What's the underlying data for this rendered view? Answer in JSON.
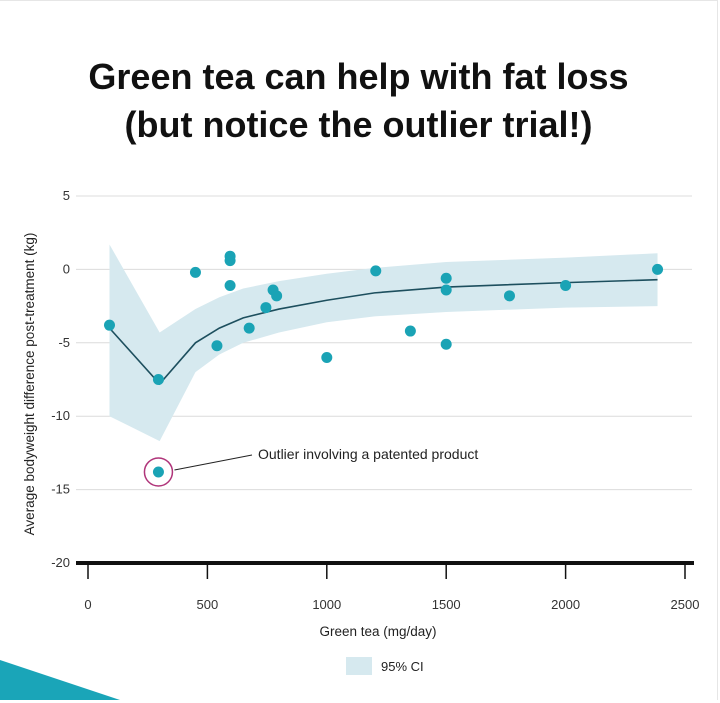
{
  "title_line1": "Green tea can help with fat loss",
  "title_line2": "(but notice the outlier trial!)",
  "chart_data": {
    "type": "scatter",
    "xlabel": "Green tea (mg/day)",
    "ylabel": "Average bodyweight difference post-treatment (kg)",
    "xlim": [
      0,
      2500
    ],
    "ylim": [
      -20,
      5
    ],
    "x_ticks": [
      0,
      500,
      1000,
      1500,
      2000,
      2500
    ],
    "y_ticks": [
      5,
      0,
      -5,
      -10,
      -15,
      -20
    ],
    "grid": true,
    "legend_position": "bottom-center",
    "legend_label": "95% CI",
    "colors": {
      "points": "#1aa3b5",
      "line": "#1d4f5e",
      "ci_band": "#d6e9ef",
      "outlier_ring": "#b0357a"
    },
    "points": [
      {
        "x": 90,
        "y": -3.8
      },
      {
        "x": 295,
        "y": -7.5
      },
      {
        "x": 450,
        "y": -0.2
      },
      {
        "x": 540,
        "y": -5.2
      },
      {
        "x": 595,
        "y": 0.9
      },
      {
        "x": 595,
        "y": 0.6
      },
      {
        "x": 595,
        "y": -1.1
      },
      {
        "x": 675,
        "y": -4.0
      },
      {
        "x": 745,
        "y": -2.6
      },
      {
        "x": 775,
        "y": -1.4
      },
      {
        "x": 790,
        "y": -1.8
      },
      {
        "x": 1000,
        "y": -6.0
      },
      {
        "x": 1205,
        "y": -0.1
      },
      {
        "x": 1350,
        "y": -4.2
      },
      {
        "x": 1500,
        "y": -0.6
      },
      {
        "x": 1500,
        "y": -1.4
      },
      {
        "x": 1500,
        "y": -5.1
      },
      {
        "x": 1765,
        "y": -1.8
      },
      {
        "x": 2000,
        "y": -1.1
      },
      {
        "x": 2385,
        "y": 0.0
      }
    ],
    "outlier": {
      "x": 295,
      "y": -13.8,
      "label": "Outlier involving a patented product"
    },
    "fit_line": [
      {
        "x": 90,
        "y": -4.0
      },
      {
        "x": 300,
        "y": -7.8
      },
      {
        "x": 450,
        "y": -5.0
      },
      {
        "x": 550,
        "y": -4.0
      },
      {
        "x": 650,
        "y": -3.3
      },
      {
        "x": 800,
        "y": -2.7
      },
      {
        "x": 1000,
        "y": -2.1
      },
      {
        "x": 1200,
        "y": -1.6
      },
      {
        "x": 1500,
        "y": -1.2
      },
      {
        "x": 2000,
        "y": -0.9
      },
      {
        "x": 2385,
        "y": -0.7
      }
    ],
    "ci_upper": [
      {
        "x": 90,
        "y": 1.7
      },
      {
        "x": 300,
        "y": -4.3
      },
      {
        "x": 450,
        "y": -2.7
      },
      {
        "x": 550,
        "y": -1.9
      },
      {
        "x": 650,
        "y": -1.3
      },
      {
        "x": 800,
        "y": -0.8
      },
      {
        "x": 1000,
        "y": -0.3
      },
      {
        "x": 1200,
        "y": 0.1
      },
      {
        "x": 1500,
        "y": 0.5
      },
      {
        "x": 2000,
        "y": 0.8
      },
      {
        "x": 2385,
        "y": 1.1
      }
    ],
    "ci_lower": [
      {
        "x": 90,
        "y": -10.0
      },
      {
        "x": 300,
        "y": -11.7
      },
      {
        "x": 450,
        "y": -7.0
      },
      {
        "x": 550,
        "y": -5.8
      },
      {
        "x": 650,
        "y": -5.0
      },
      {
        "x": 800,
        "y": -4.3
      },
      {
        "x": 1000,
        "y": -3.6
      },
      {
        "x": 1200,
        "y": -3.2
      },
      {
        "x": 1500,
        "y": -2.9
      },
      {
        "x": 2000,
        "y": -2.6
      },
      {
        "x": 2385,
        "y": -2.5
      }
    ]
  }
}
